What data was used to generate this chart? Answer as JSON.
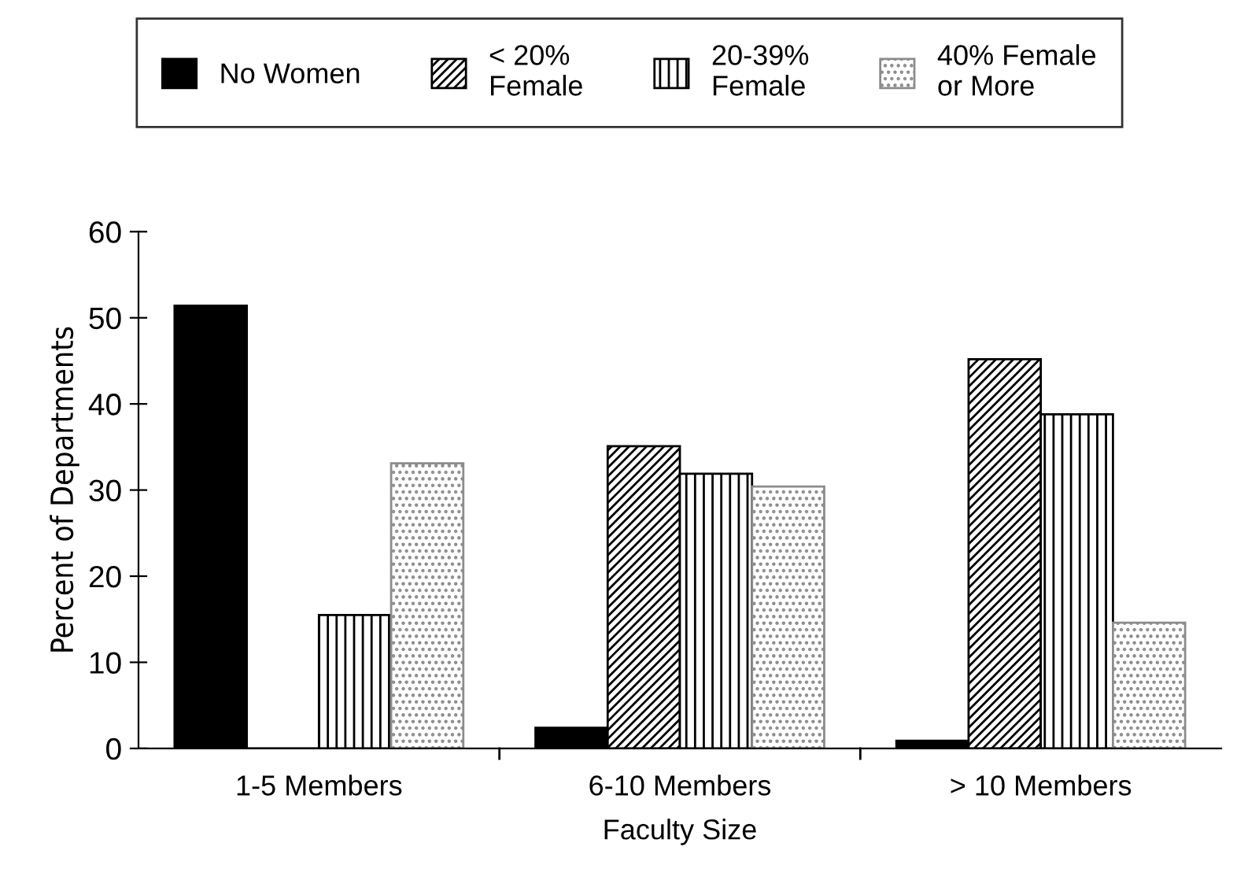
{
  "chart_data": {
    "type": "bar",
    "categories": [
      "1-5 Members",
      "6-10 Members",
      "> 10 Members"
    ],
    "xlabel": "Faculty Size",
    "ylabel": "Percent of Departments",
    "ylim": [
      0,
      60
    ],
    "yticks": [
      0,
      10,
      20,
      30,
      40,
      50,
      60
    ],
    "grid": false,
    "legend": "top",
    "series": [
      {
        "name": "No Women",
        "color": "#000000",
        "values": [
          51.4,
          2.4,
          0.9
        ]
      },
      {
        "name": "< 20%\nFemale",
        "color": "#000000",
        "values": [
          0,
          35.1,
          45.2
        ]
      },
      {
        "name": "20-39%\nFemale",
        "color": "#000000",
        "values": [
          15.5,
          31.9,
          38.8
        ]
      },
      {
        "name": "40% Female\nor More",
        "color": "#8c8c8c",
        "values": [
          33.1,
          30.4,
          14.6
        ]
      }
    ]
  }
}
